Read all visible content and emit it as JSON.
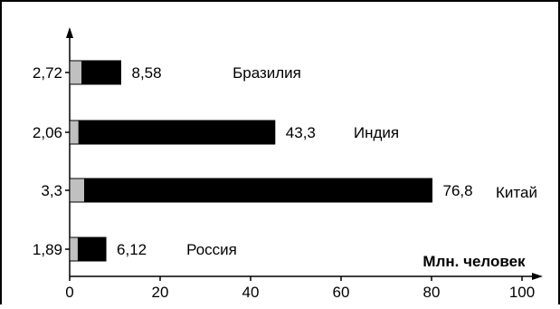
{
  "chart_data": {
    "type": "bar",
    "orientation": "horizontal",
    "stacked": true,
    "xlabel": "Млн. человек",
    "xlim": [
      0,
      100
    ],
    "xticks": [
      "0",
      "20",
      "40",
      "60",
      "80",
      "100"
    ],
    "grid": false,
    "categories": [
      "Бразилия",
      "Индия",
      "Китай",
      "Россия"
    ],
    "series": [
      {
        "values": [
          2.72,
          2.06,
          3.3,
          1.89
        ],
        "labels": [
          "2,72",
          "2,06",
          "3,3",
          "1,89"
        ],
        "color": "#c0c0c0"
      },
      {
        "values": [
          8.58,
          43.3,
          76.8,
          6.12
        ],
        "labels": [
          "8,58",
          "43,3",
          "76,8",
          "6,12"
        ],
        "color": "#000000"
      }
    ]
  }
}
